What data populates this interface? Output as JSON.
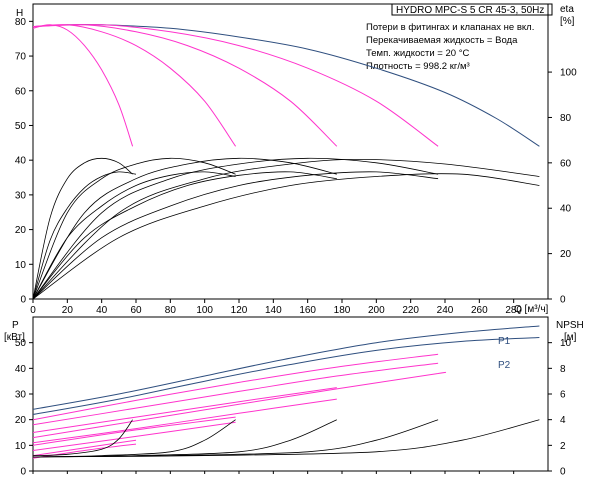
{
  "chart_data": [
    {
      "type": "line",
      "title": "HYDRO MPC-S 5 CR 45-3, 50Hz",
      "notes": [
        "Потери в фитингах и клапанах не вкл.",
        "Перекачиваемая жидкость = Вода",
        "Темп. жидкости = 20 °C",
        "Плотность = 998.2 кг/м³"
      ],
      "xlabel": "Q [м³/ч]",
      "ylabel_left": "H",
      "ylabel_left_unit": "[м]",
      "ylabel_right": "eta",
      "ylabel_right_unit": "[%]",
      "xlim": [
        0,
        300
      ],
      "ylim_left": [
        0,
        85
      ],
      "ylim_right": [
        0,
        130
      ],
      "xticks": [
        0,
        20,
        40,
        60,
        80,
        100,
        120,
        140,
        160,
        180,
        200,
        220,
        240,
        260,
        280
      ],
      "yticks_left": [
        0,
        10,
        20,
        30,
        40,
        50,
        60,
        70,
        80
      ],
      "yticks_right": [
        0,
        20,
        40,
        60,
        80,
        100
      ],
      "series": [
        {
          "group": "H-max",
          "color": "#2f4f7f",
          "axis": "left",
          "points": [
            [
              0,
              78.5
            ],
            [
              20,
              79
            ],
            [
              40,
              79
            ],
            [
              80,
              78
            ],
            [
              120,
              75.5
            ],
            [
              160,
              72
            ],
            [
              200,
              66.5
            ],
            [
              240,
              59.5
            ],
            [
              270,
              52
            ],
            [
              295,
              44
            ]
          ]
        },
        {
          "group": "H-pump",
          "color": "#ff33cc",
          "axis": "left",
          "points": [
            [
              0,
              78
            ],
            [
              10,
              79
            ],
            [
              20,
              77.5
            ],
            [
              30,
              73
            ],
            [
              40,
              66
            ],
            [
              50,
              56
            ],
            [
              58,
              44
            ]
          ]
        },
        {
          "group": "H-pump",
          "color": "#ff33cc",
          "axis": "left",
          "points": [
            [
              0,
              78.5
            ],
            [
              20,
              79
            ],
            [
              40,
              77
            ],
            [
              60,
              73
            ],
            [
              80,
              66.5
            ],
            [
              100,
              57
            ],
            [
              118,
              44
            ]
          ]
        },
        {
          "group": "H-pump",
          "color": "#ff33cc",
          "axis": "left",
          "points": [
            [
              0,
              78.5
            ],
            [
              30,
              79
            ],
            [
              60,
              77
            ],
            [
              90,
              73
            ],
            [
              120,
              66.5
            ],
            [
              150,
              57
            ],
            [
              177,
              44
            ]
          ]
        },
        {
          "group": "H-pump",
          "color": "#ff33cc",
          "axis": "left",
          "points": [
            [
              0,
              78.5
            ],
            [
              40,
              79
            ],
            [
              80,
              77
            ],
            [
              120,
              73
            ],
            [
              160,
              66.5
            ],
            [
              200,
              57
            ],
            [
              236,
              44
            ]
          ]
        },
        {
          "group": "eta",
          "color": "#000000",
          "axis": "right",
          "points": [
            [
              0,
              0
            ],
            [
              10,
              36
            ],
            [
              20,
              53
            ],
            [
              30,
              60
            ],
            [
              40,
              62
            ],
            [
              50,
              60
            ],
            [
              58,
              55
            ]
          ]
        },
        {
          "group": "eta",
          "color": "#000000",
          "axis": "right",
          "points": [
            [
              0,
              0
            ],
            [
              10,
              26
            ],
            [
              20,
              40
            ],
            [
              30,
              49
            ],
            [
              40,
              54
            ],
            [
              50,
              56
            ],
            [
              60,
              55
            ]
          ]
        },
        {
          "group": "eta",
          "color": "#000000",
          "axis": "right",
          "points": [
            [
              0,
              0
            ],
            [
              20,
              38
            ],
            [
              40,
              53
            ],
            [
              60,
              59.5
            ],
            [
              80,
              62
            ],
            [
              100,
              60
            ],
            [
              118,
              55
            ]
          ]
        },
        {
          "group": "eta",
          "color": "#000000",
          "axis": "right",
          "points": [
            [
              0,
              0
            ],
            [
              20,
              27
            ],
            [
              40,
              41
            ],
            [
              60,
              50
            ],
            [
              80,
              54.5
            ],
            [
              100,
              56
            ],
            [
              118,
              54
            ]
          ]
        },
        {
          "group": "eta",
          "color": "#000000",
          "axis": "right",
          "points": [
            [
              0,
              0
            ],
            [
              30,
              38
            ],
            [
              60,
              53
            ],
            [
              90,
              59.5
            ],
            [
              120,
              62
            ],
            [
              150,
              60
            ],
            [
              177,
              55
            ]
          ]
        },
        {
          "group": "eta",
          "color": "#000000",
          "axis": "right",
          "points": [
            [
              0,
              0
            ],
            [
              30,
              27
            ],
            [
              60,
              41
            ],
            [
              90,
              50
            ],
            [
              120,
              54.5
            ],
            [
              150,
              56
            ],
            [
              177,
              53
            ]
          ]
        },
        {
          "group": "eta",
          "color": "#000000",
          "axis": "right",
          "points": [
            [
              0,
              0
            ],
            [
              40,
              38
            ],
            [
              80,
              53
            ],
            [
              120,
              59.5
            ],
            [
              160,
              62
            ],
            [
              200,
              60
            ],
            [
              236,
              55
            ]
          ]
        },
        {
          "group": "eta",
          "color": "#000000",
          "axis": "right",
          "points": [
            [
              0,
              0
            ],
            [
              40,
              27
            ],
            [
              80,
              41
            ],
            [
              120,
              50
            ],
            [
              160,
              54.5
            ],
            [
              200,
              56
            ],
            [
              236,
              53
            ]
          ]
        },
        {
          "group": "eta",
          "color": "#000000",
          "axis": "right",
          "points": [
            [
              0,
              0
            ],
            [
              50,
              38
            ],
            [
              100,
              53
            ],
            [
              150,
              59.5
            ],
            [
              190,
              61.5
            ],
            [
              240,
              59.5
            ],
            [
              295,
              54
            ]
          ]
        },
        {
          "group": "eta",
          "color": "#000000",
          "axis": "right",
          "points": [
            [
              0,
              0
            ],
            [
              50,
              27
            ],
            [
              100,
              41
            ],
            [
              150,
              50
            ],
            [
              200,
              54
            ],
            [
              250,
              55
            ],
            [
              295,
              50
            ]
          ]
        }
      ]
    },
    {
      "type": "line",
      "xlabel": "",
      "ylabel_left": "P",
      "ylabel_left_unit": "[кВт]",
      "ylabel_right": "NPSH",
      "ylabel_right_unit": "[м]",
      "xlim": [
        0,
        300
      ],
      "ylim_left": [
        0,
        60
      ],
      "ylim_right": [
        0,
        12
      ],
      "yticks_left": [
        0,
        10,
        20,
        30,
        40,
        50
      ],
      "yticks_right": [
        0,
        2,
        4,
        6,
        8,
        10
      ],
      "series_labels": [
        "P1",
        "P2"
      ],
      "series": [
        {
          "name": "P1",
          "group": "P-total",
          "color": "#2f4f7f",
          "axis": "left",
          "points": [
            [
              0,
              24
            ],
            [
              50,
              30
            ],
            [
              100,
              37
            ],
            [
              150,
              44
            ],
            [
              200,
              50
            ],
            [
              250,
              54
            ],
            [
              295,
              56.5
            ]
          ]
        },
        {
          "name": "P2",
          "group": "P-total",
          "color": "#2f4f7f",
          "axis": "left",
          "points": [
            [
              0,
              22
            ],
            [
              50,
              28
            ],
            [
              100,
              35
            ],
            [
              150,
              41.5
            ],
            [
              200,
              47
            ],
            [
              250,
              50.5
            ],
            [
              295,
              52
            ]
          ]
        },
        {
          "group": "P-pump",
          "color": "#ff33cc",
          "axis": "left",
          "points": [
            [
              0,
              13
            ],
            [
              60,
              19.5
            ],
            [
              120,
              26
            ],
            [
              177,
              32
            ],
            [
              236,
              38
            ],
            [
              236,
              38
            ]
          ]
        },
        {
          "group": "P-pump",
          "color": "#ff33cc",
          "axis": "left",
          "points": [
            [
              0,
              18
            ],
            [
              60,
              24.5
            ],
            [
              120,
              31
            ],
            [
              177,
              37
            ],
            [
              236,
              42
            ]
          ]
        },
        {
          "group": "P-pump",
          "color": "#ff33cc",
          "axis": "left",
          "points": [
            [
              0,
              20
            ],
            [
              60,
              27.5
            ],
            [
              120,
              34.5
            ],
            [
              177,
              40.5
            ],
            [
              236,
              45.5
            ]
          ]
        },
        {
          "group": "P-pump",
          "color": "#ff33cc",
          "axis": "left",
          "points": [
            [
              0,
              11
            ],
            [
              60,
              16.5
            ],
            [
              120,
              22.5
            ],
            [
              177,
              28
            ]
          ]
        },
        {
          "group": "P-pump",
          "color": "#ff33cc",
          "axis": "left",
          "points": [
            [
              0,
              15
            ],
            [
              60,
              21
            ],
            [
              120,
              27
            ],
            [
              177,
              32.5
            ]
          ]
        },
        {
          "group": "P-pump",
          "color": "#ff33cc",
          "axis": "left",
          "points": [
            [
              0,
              8
            ],
            [
              60,
              13.5
            ],
            [
              118,
              19
            ]
          ]
        },
        {
          "group": "P-pump",
          "color": "#ff33cc",
          "axis": "left",
          "points": [
            [
              0,
              10
            ],
            [
              60,
              16
            ],
            [
              118,
              21
            ]
          ]
        },
        {
          "group": "P-pump",
          "color": "#ff33cc",
          "axis": "left",
          "points": [
            [
              0,
              5
            ],
            [
              30,
              8
            ],
            [
              60,
              10.5
            ]
          ]
        },
        {
          "group": "P-pump",
          "color": "#ff33cc",
          "axis": "left",
          "points": [
            [
              0,
              6
            ],
            [
              30,
              9
            ],
            [
              60,
              12
            ]
          ]
        },
        {
          "group": "NPSH",
          "color": "#000000",
          "axis": "right",
          "points": [
            [
              0,
              1.2
            ],
            [
              20,
              1.3
            ],
            [
              40,
              1.7
            ],
            [
              50,
              2.5
            ],
            [
              58,
              4
            ]
          ]
        },
        {
          "group": "NPSH",
          "color": "#000000",
          "axis": "right",
          "points": [
            [
              0,
              1.1
            ],
            [
              40,
              1.2
            ],
            [
              80,
              1.5
            ],
            [
              100,
              2.4
            ],
            [
              118,
              4
            ]
          ]
        },
        {
          "group": "NPSH",
          "color": "#000000",
          "axis": "right",
          "points": [
            [
              0,
              1.1
            ],
            [
              60,
              1.2
            ],
            [
              120,
              1.5
            ],
            [
              150,
              2.4
            ],
            [
              177,
              4
            ]
          ]
        },
        {
          "group": "NPSH",
          "color": "#000000",
          "axis": "right",
          "points": [
            [
              0,
              1.1
            ],
            [
              80,
              1.2
            ],
            [
              160,
              1.5
            ],
            [
              200,
              2.4
            ],
            [
              236,
              4
            ]
          ]
        },
        {
          "group": "NPSH",
          "color": "#000000",
          "axis": "right",
          "points": [
            [
              0,
              1.1
            ],
            [
              100,
              1.2
            ],
            [
              200,
              1.5
            ],
            [
              250,
              2.4
            ],
            [
              295,
              4
            ]
          ]
        }
      ]
    }
  ]
}
